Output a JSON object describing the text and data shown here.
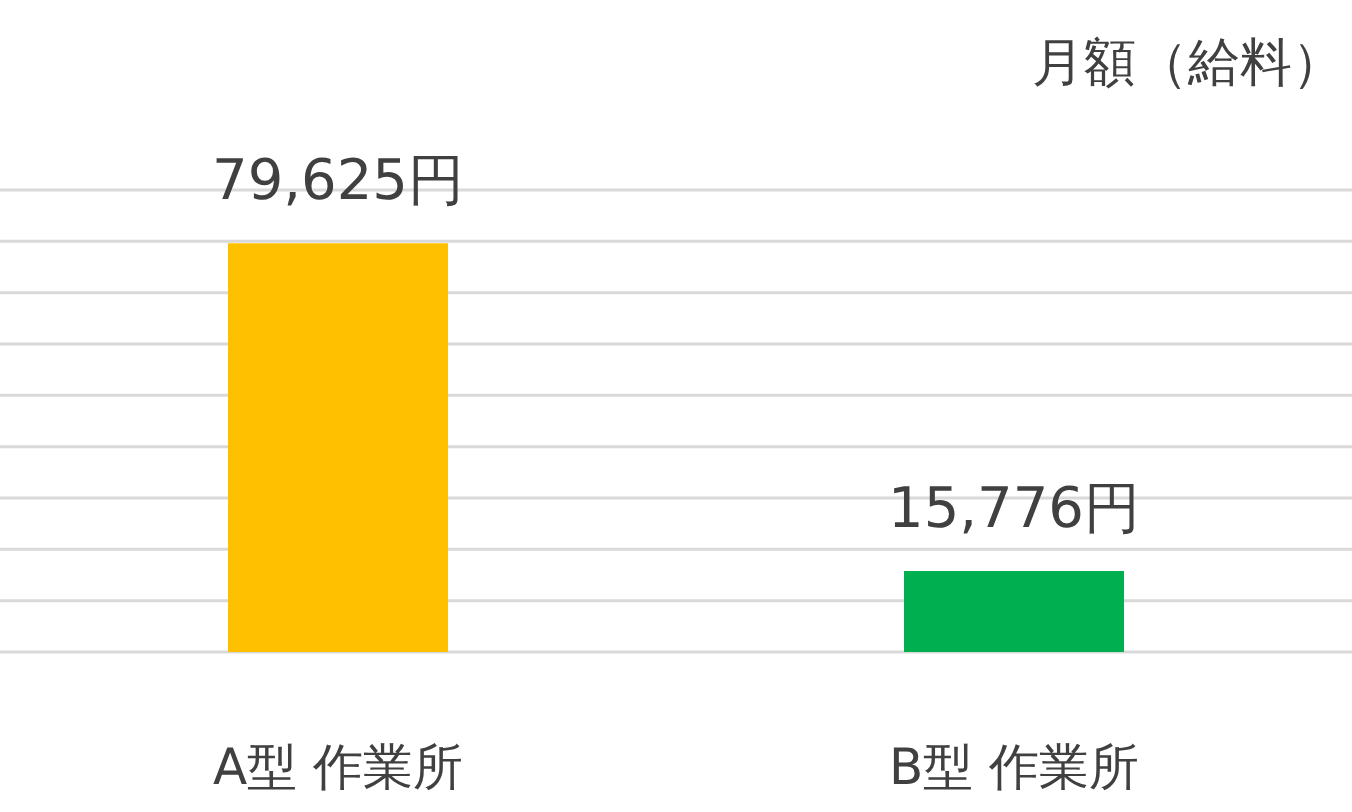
{
  "chart_data": {
    "type": "bar",
    "title": "月額（給料）",
    "categories": [
      "A型 作業所",
      "B型 作業所"
    ],
    "values": [
      79625,
      15776
    ],
    "colors": [
      "#ffc000",
      "#00b050"
    ],
    "value_labels": [
      "79,625円",
      "15,776円"
    ],
    "ylim": [
      0,
      90000
    ],
    "yticks": [
      {
        "value": 0,
        "label": null
      },
      {
        "value": 10000,
        "label": null
      },
      {
        "value": 20000,
        "label": null
      },
      {
        "value": 30000,
        "label": null
      },
      {
        "value": 40000,
        "label": null
      },
      {
        "value": 50000,
        "label": null
      },
      {
        "value": 60000,
        "label": null
      },
      {
        "value": 70000,
        "label": null
      },
      {
        "value": 80000,
        "label": null
      },
      {
        "value": 90000,
        "label": null
      }
    ],
    "tick_labels": "x",
    "grid": "y"
  }
}
